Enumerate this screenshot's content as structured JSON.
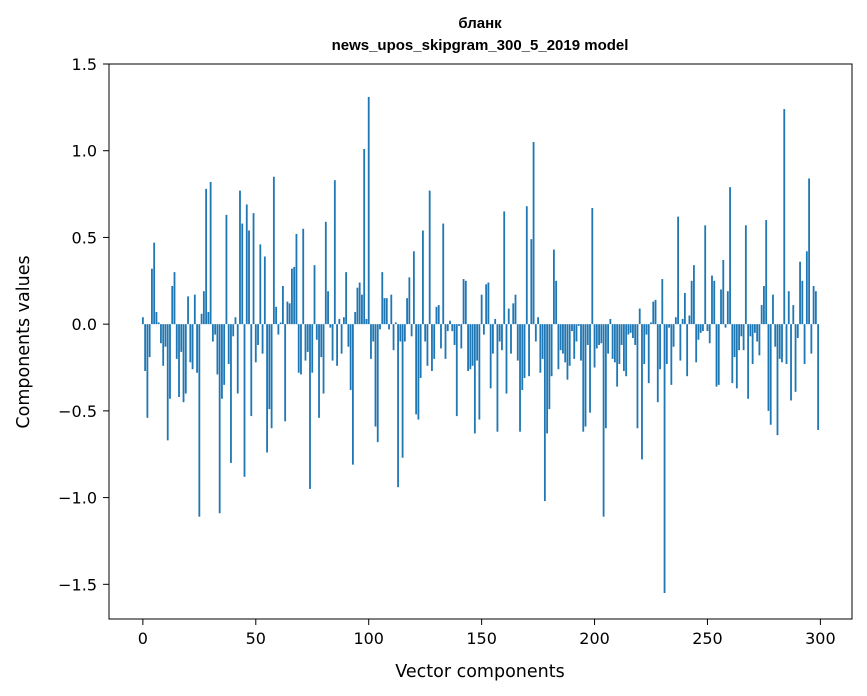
{
  "chart_data": {
    "type": "bar",
    "title": "бланк",
    "subtitle": "news_upos_skipgram_300_5_2019 model",
    "xlabel": "Vector components",
    "ylabel": "Components values",
    "xlim": [
      -15,
      314
    ],
    "ylim": [
      -1.7,
      1.5
    ],
    "xticks": [
      0,
      50,
      100,
      150,
      200,
      250,
      300
    ],
    "yticks": [
      -1.5,
      -1.0,
      -0.5,
      0.0,
      0.5,
      1.0,
      1.5
    ],
    "xtick_labels": [
      "0",
      "50",
      "100",
      "150",
      "200",
      "250",
      "300"
    ],
    "ytick_labels": [
      "−1.5",
      "−1.0",
      "−0.5",
      "0.0",
      "0.5",
      "1.0",
      "1.5"
    ],
    "grid": false,
    "bar_color": "#1f77b4",
    "values": [
      0.04,
      -0.27,
      -0.54,
      -0.19,
      0.32,
      0.47,
      0.07,
      0.01,
      -0.11,
      -0.24,
      -0.13,
      -0.67,
      -0.43,
      0.22,
      0.3,
      -0.2,
      -0.42,
      -0.16,
      -0.45,
      -0.4,
      0.16,
      -0.22,
      -0.26,
      0.17,
      -0.28,
      -1.11,
      0.06,
      0.19,
      0.78,
      0.07,
      0.82,
      -0.1,
      -0.06,
      -0.29,
      -1.09,
      -0.43,
      -0.35,
      0.63,
      -0.23,
      -0.8,
      -0.07,
      0.04,
      -0.4,
      0.77,
      0.58,
      -0.88,
      0.69,
      0.54,
      -0.53,
      0.64,
      -0.22,
      -0.12,
      0.46,
      -0.17,
      0.39,
      -0.74,
      -0.49,
      -0.6,
      0.85,
      0.1,
      -0.06,
      0.01,
      0.22,
      -0.56,
      0.13,
      0.12,
      0.32,
      0.33,
      0.52,
      -0.28,
      -0.29,
      0.55,
      -0.21,
      -0.16,
      -0.95,
      -0.28,
      0.34,
      -0.09,
      -0.54,
      -0.19,
      -0.4,
      0.59,
      0.19,
      -0.02,
      -0.21,
      0.83,
      -0.24,
      0.03,
      -0.17,
      0.04,
      0.3,
      -0.13,
      -0.38,
      -0.81,
      0.07,
      0.21,
      0.24,
      0.17,
      1.01,
      0.03,
      1.31,
      -0.2,
      -0.1,
      -0.59,
      -0.68,
      -0.03,
      0.3,
      0.15,
      0.15,
      -0.03,
      0.17,
      -0.15,
      0.01,
      -0.94,
      -0.1,
      -0.77,
      -0.1,
      0.15,
      0.27,
      -0.07,
      0.42,
      -0.52,
      -0.55,
      -0.31,
      0.54,
      -0.1,
      -0.24,
      0.77,
      -0.27,
      -0.2,
      0.1,
      0.11,
      -0.14,
      0.58,
      -0.2,
      -0.04,
      0.02,
      -0.04,
      -0.12,
      -0.53,
      -0.01,
      -0.14,
      0.26,
      0.25,
      -0.27,
      -0.26,
      -0.24,
      -0.63,
      -0.21,
      -0.55,
      0.17,
      -0.06,
      0.23,
      0.24,
      -0.37,
      -0.17,
      0.03,
      -0.62,
      -0.1,
      -0.15,
      0.65,
      -0.4,
      0.09,
      -0.17,
      0.12,
      0.17,
      -0.21,
      -0.62,
      -0.38,
      -0.31,
      0.68,
      -0.3,
      0.49,
      1.05,
      -0.1,
      0.04,
      -0.28,
      -0.2,
      -1.02,
      -0.63,
      -0.49,
      -0.3,
      0.43,
      0.25,
      -0.26,
      -0.15,
      -0.17,
      -0.22,
      -0.32,
      -0.24,
      -0.04,
      -0.2,
      -0.1,
      -0.01,
      -0.21,
      -0.62,
      -0.59,
      -0.12,
      -0.51,
      0.67,
      -0.25,
      -0.14,
      -0.12,
      -0.11,
      -1.11,
      -0.6,
      -0.17,
      0.03,
      -0.2,
      -0.22,
      -0.36,
      -0.23,
      -0.12,
      -0.27,
      -0.3,
      -0.06,
      -0.05,
      -0.08,
      -0.12,
      -0.6,
      0.09,
      -0.78,
      -0.23,
      -0.06,
      -0.34,
      0.01,
      0.13,
      0.14,
      -0.45,
      -0.26,
      0.26,
      -1.55,
      -0.23,
      -0.02,
      -0.35,
      -0.13,
      0.04,
      0.62,
      -0.21,
      0.03,
      0.18,
      -0.3,
      0.05,
      0.25,
      0.34,
      -0.22,
      -0.09,
      -0.05,
      -0.04,
      0.57,
      -0.04,
      -0.11,
      0.28,
      0.25,
      -0.36,
      -0.35,
      0.2,
      0.37,
      -0.02,
      0.19,
      0.79,
      -0.34,
      -0.19,
      -0.37,
      -0.15,
      -0.07,
      -0.15,
      0.57,
      -0.43,
      -0.07,
      -0.23,
      -0.05,
      -0.1,
      -0.18,
      0.11,
      0.22,
      0.6,
      -0.5,
      -0.58,
      0.17,
      -0.13,
      -0.64,
      -0.2,
      -0.22,
      1.24,
      -0.23,
      0.19,
      -0.44,
      0.11,
      -0.39,
      -0.08,
      0.36,
      0.25,
      -0.23,
      0.42,
      0.84,
      -0.17,
      0.22,
      0.19,
      -0.61
    ]
  }
}
